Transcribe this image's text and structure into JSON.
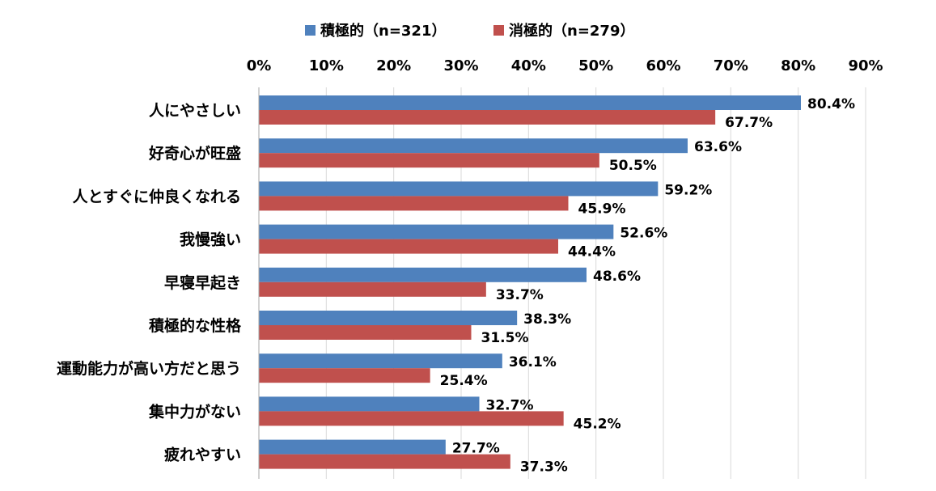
{
  "chart_data": {
    "type": "bar",
    "orientation": "horizontal",
    "categories": [
      "人にやさしい",
      "好奇心が旺盛",
      "人とすぐに仲良くなれる",
      "我慢強い",
      "早寝早起き",
      "積極的な性格",
      "運動能力が高い方だと思う",
      "集中力がない",
      "疲れやすい"
    ],
    "series": [
      {
        "name": "積極的（n=321）",
        "color": "#4f81bd",
        "values": [
          80.4,
          63.6,
          59.2,
          52.6,
          48.6,
          38.3,
          36.1,
          32.7,
          27.7
        ],
        "labels": [
          "80.4%",
          "63.6%",
          "59.2%",
          "52.6%",
          "48.6%",
          "38.3%",
          "36.1%",
          "32.7%",
          "27.7%"
        ]
      },
      {
        "name": "消極的（n=279）",
        "color": "#c0504d",
        "values": [
          67.7,
          50.5,
          45.9,
          44.4,
          33.7,
          31.5,
          25.4,
          45.2,
          37.3
        ],
        "labels": [
          "67.7%",
          "50.5%",
          "45.9%",
          "44.4%",
          "33.7%",
          "31.5%",
          "25.4%",
          "45.2%",
          "37.3%"
        ]
      }
    ],
    "xlim": [
      0,
      90
    ],
    "xticks": [
      0,
      10,
      20,
      30,
      40,
      50,
      60,
      70,
      80,
      90
    ],
    "xtick_labels": [
      "0%",
      "10%",
      "20%",
      "30%",
      "40%",
      "50%",
      "60%",
      "70%",
      "80%",
      "90%"
    ],
    "x_axis_position": "top",
    "grid": true,
    "legend_position": "top"
  }
}
